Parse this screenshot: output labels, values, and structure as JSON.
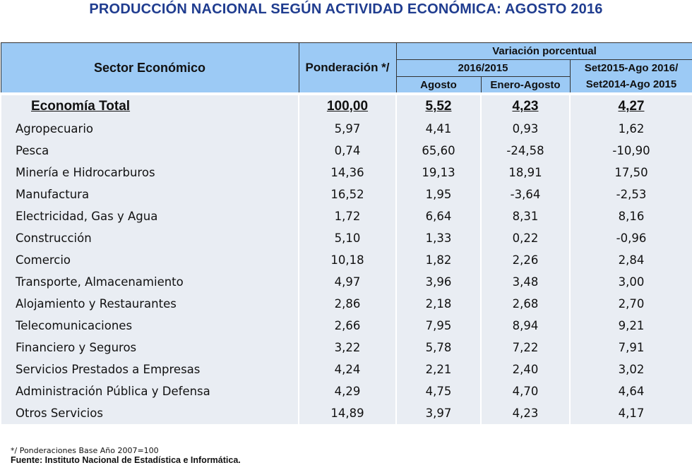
{
  "title": "PRODUCCIÓN NACIONAL SEGÚN ACTIVIDAD ECONÓMICA: AGOSTO 2016",
  "header": {
    "sector": "Sector Económico",
    "ponderacion": "Ponderación */",
    "variacion": "Variación porcentual",
    "period1": "2016/2015",
    "agosto": "Agosto",
    "enero_agosto": "Enero-Agosto",
    "period2a": "Set2015-Ago 2016/",
    "period2b": "Set2014-Ago 2015"
  },
  "chart_data": {
    "type": "table",
    "columns": [
      "Sector Económico",
      "Ponderación */",
      "Agosto",
      "Enero-Agosto",
      "Set2015-Ago 2016/ Set2014-Ago 2015"
    ],
    "total": [
      "Economía Total",
      "100,00",
      "5,52",
      "4,23",
      "4,27"
    ],
    "rows": [
      [
        "Agropecuario",
        "5,97",
        "4,41",
        "0,93",
        "1,62"
      ],
      [
        "Pesca",
        "0,74",
        "65,60",
        "-24,58",
        "-10,90"
      ],
      [
        "Minería e Hidrocarburos",
        "14,36",
        "19,13",
        "18,91",
        "17,50"
      ],
      [
        "Manufactura",
        "16,52",
        "1,95",
        "-3,64",
        "-2,53"
      ],
      [
        "Electricidad, Gas y Agua",
        "1,72",
        "6,64",
        "8,31",
        "8,16"
      ],
      [
        "Construcción",
        "5,10",
        "1,33",
        "0,22",
        "-0,96"
      ],
      [
        "Comercio",
        "10,18",
        "1,82",
        "2,26",
        "2,84"
      ],
      [
        "Transporte, Almacenamiento",
        "4,97",
        "3,96",
        "3,48",
        "3,00"
      ],
      [
        "Alojamiento y Restaurantes",
        "2,86",
        "2,18",
        "2,68",
        "2,70"
      ],
      [
        "Telecomunicaciones",
        "2,66",
        "7,95",
        "8,94",
        "9,21"
      ],
      [
        "Financiero y Seguros",
        "3,22",
        "5,78",
        "7,22",
        "7,91"
      ],
      [
        "Servicios Prestados a Empresas",
        "4,24",
        "2,21",
        "2,40",
        "3,02"
      ],
      [
        "Administración Pública y Defensa",
        "4,29",
        "4,75",
        "4,70",
        "4,64"
      ],
      [
        "Otros Servicios",
        "14,89",
        "3,97",
        "4,23",
        "4,17"
      ]
    ]
  },
  "footnote": "*/ Ponderaciones Base Año  2007=100",
  "source": "Fuente: Instituto Nacional de Estadística e Informática."
}
